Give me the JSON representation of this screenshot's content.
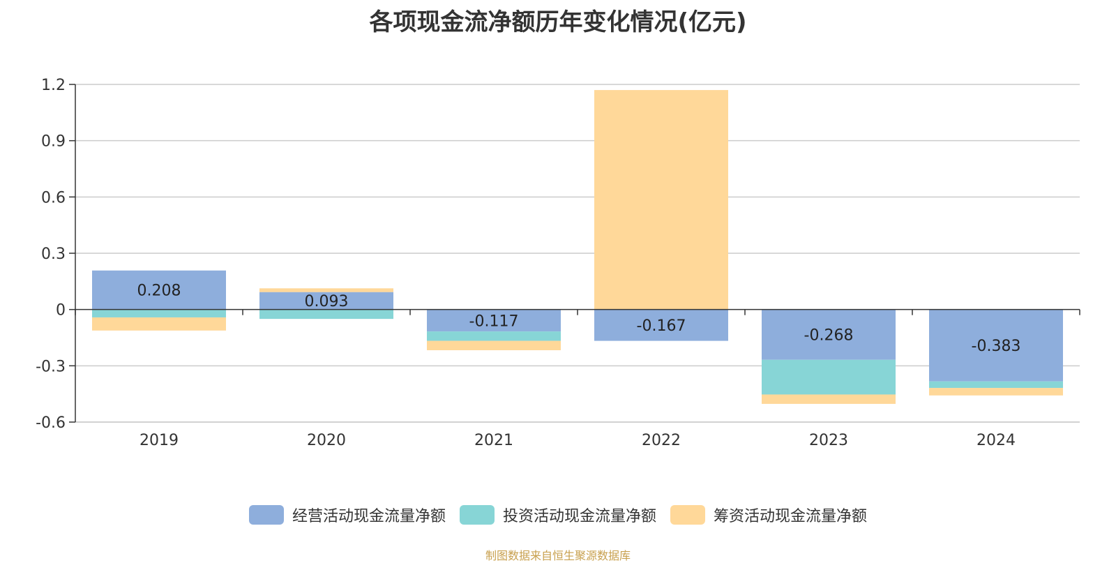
{
  "chart_data": {
    "type": "bar",
    "stacked": true,
    "title": "各项现金流净额历年变化情况(亿元)",
    "categories": [
      "2019",
      "2020",
      "2021",
      "2022",
      "2023",
      "2024"
    ],
    "series": [
      {
        "name": "经营活动现金流量净额",
        "color": "#8eaedc",
        "values": [
          0.208,
          0.093,
          -0.117,
          -0.167,
          -0.268,
          -0.383
        ]
      },
      {
        "name": "投资活动现金流量净额",
        "color": "#87d5d6",
        "values": [
          -0.042,
          -0.05,
          -0.05,
          0,
          -0.185,
          -0.035
        ]
      },
      {
        "name": "筹资活动现金流量净额",
        "color": "#ffd899",
        "values": [
          -0.07,
          0.02,
          -0.05,
          1.17,
          -0.05,
          -0.04
        ]
      }
    ],
    "data_labels": [
      "0.208",
      "0.093",
      "-0.117",
      "-0.167",
      "-0.268",
      "-0.383"
    ],
    "ylim": [
      -0.6,
      1.2
    ],
    "yticks": [
      "-0.6",
      "-0.3",
      "0",
      "0.3",
      "0.6",
      "0.9",
      "1.2"
    ],
    "grid": true,
    "legend_position": "bottom-center",
    "source_note": "制图数据来自恒生聚源数据库"
  }
}
